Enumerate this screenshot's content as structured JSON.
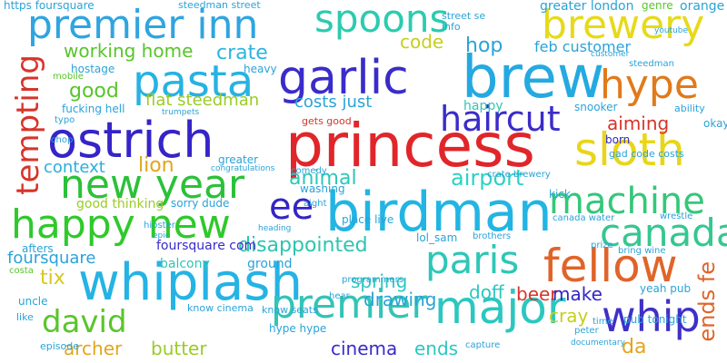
{
  "words": [
    {
      "text": "princess",
      "color": "#e0262a",
      "vertical": false
    },
    {
      "text": "birdman",
      "color": "#22b5e3",
      "vertical": false
    },
    {
      "text": "whiplash",
      "color": "#25b3e4",
      "vertical": false
    },
    {
      "text": "brew",
      "color": "#24a9e1",
      "vertical": false
    },
    {
      "text": "ostrich",
      "color": "#3524c8",
      "vertical": false
    },
    {
      "text": "garlic",
      "color": "#3a2cc9",
      "vertical": false
    },
    {
      "text": "premier inn",
      "color": "#2fa5e0",
      "vertical": false
    },
    {
      "text": "pasta",
      "color": "#26b3e2",
      "vertical": false
    },
    {
      "text": "happy new",
      "color": "#2fc92b",
      "vertical": false
    },
    {
      "text": "new year",
      "color": "#2bc13a",
      "vertical": false
    },
    {
      "text": "sloth",
      "color": "#e8d619",
      "vertical": false
    },
    {
      "text": "brewery",
      "color": "#e6da1a",
      "vertical": false
    },
    {
      "text": "hype",
      "color": "#e07a1a",
      "vertical": false
    },
    {
      "text": "major",
      "color": "#2bc7c0",
      "vertical": false
    },
    {
      "text": "premier",
      "color": "#33c4b5",
      "vertical": false
    },
    {
      "text": "fellow",
      "color": "#e0642a",
      "vertical": false
    },
    {
      "text": "paris",
      "color": "#2dc7b6",
      "vertical": false
    },
    {
      "text": "canada",
      "color": "#35c790",
      "vertical": false
    },
    {
      "text": "machine",
      "color": "#35c77a",
      "vertical": false
    },
    {
      "text": "spoons",
      "color": "#2ccbb0",
      "vertical": false
    },
    {
      "text": "haircut",
      "color": "#3a2cc9",
      "vertical": false
    },
    {
      "text": "whip",
      "color": "#3f30c8",
      "vertical": false
    },
    {
      "text": "david",
      "color": "#58c52b",
      "vertical": false
    },
    {
      "text": "ee",
      "color": "#3425c4",
      "vertical": false
    },
    {
      "text": "tempting",
      "color": "#d8342a",
      "vertical": true
    },
    {
      "text": "ends fe",
      "color": "#e0642a",
      "vertical": true
    },
    {
      "text": "context",
      "color": "#2caedd",
      "vertical": false
    },
    {
      "text": "lion",
      "color": "#e3a51c",
      "vertical": false
    },
    {
      "text": "animal",
      "color": "#2dc7b6",
      "vertical": false
    },
    {
      "text": "airport",
      "color": "#2bd2c3",
      "vertical": false
    },
    {
      "text": "disappointed",
      "color": "#2ec5b0",
      "vertical": false
    },
    {
      "text": "working home",
      "color": "#58c52b",
      "vertical": false
    },
    {
      "text": "crate",
      "color": "#2bb5e0",
      "vertical": false
    },
    {
      "text": "hop",
      "color": "#2aa3d8",
      "vertical": false
    },
    {
      "text": "code",
      "color": "#c5cf1c",
      "vertical": false
    },
    {
      "text": "aiming",
      "color": "#d8342a",
      "vertical": false
    },
    {
      "text": "good",
      "color": "#58c52b",
      "vertical": false
    },
    {
      "text": "flat steedman",
      "color": "#9acb28",
      "vertical": false
    },
    {
      "text": "costs just",
      "color": "#2aa3d8",
      "vertical": false
    },
    {
      "text": "feb customer",
      "color": "#2aa3d8",
      "vertical": false
    },
    {
      "text": "foursquare",
      "color": "#2aa3d8",
      "vertical": false
    },
    {
      "text": "tix",
      "color": "#d6c820",
      "vertical": false
    },
    {
      "text": "spring",
      "color": "#2bc7c0",
      "vertical": false
    },
    {
      "text": "drawing",
      "color": "#2aa3d8",
      "vertical": false
    },
    {
      "text": "beer",
      "color": "#d8342a",
      "vertical": false
    },
    {
      "text": "make",
      "color": "#3425c4",
      "vertical": false
    },
    {
      "text": "doff",
      "color": "#2bc7c0",
      "vertical": false
    },
    {
      "text": "archer",
      "color": "#e3a51c",
      "vertical": false
    },
    {
      "text": "butter",
      "color": "#9acb28",
      "vertical": false
    },
    {
      "text": "cinema",
      "color": "#3a2cc9",
      "vertical": false
    },
    {
      "text": "ends",
      "color": "#2bc7c0",
      "vertical": false
    },
    {
      "text": "cray",
      "color": "#c5cf1c",
      "vertical": false
    },
    {
      "text": "da",
      "color": "#e3a51c",
      "vertical": false
    },
    {
      "text": "happy",
      "color": "#33c4b5",
      "vertical": false
    },
    {
      "text": "greater london",
      "color": "#2aa3d8",
      "vertical": false
    },
    {
      "text": "orange",
      "color": "#2aa3d8",
      "vertical": false
    },
    {
      "text": "genre",
      "color": "#58c52b",
      "vertical": false
    },
    {
      "text": "https foursquare",
      "color": "#2aa3d8",
      "vertical": false
    },
    {
      "text": "steedman street",
      "color": "#2aa3d8",
      "vertical": false
    },
    {
      "text": "good thinking",
      "color": "#9acb28",
      "vertical": false
    },
    {
      "text": "sorry dude",
      "color": "#2aa3d8",
      "vertical": false
    },
    {
      "text": "foursquare com",
      "color": "#3a2cc9",
      "vertical": false
    },
    {
      "text": "balcony",
      "color": "#33c4b5",
      "vertical": false
    },
    {
      "text": "ground",
      "color": "#2aa3d8",
      "vertical": false
    },
    {
      "text": "lol_sam",
      "color": "#2aa3d8",
      "vertical": false
    },
    {
      "text": "place live",
      "color": "#2aa3d8",
      "vertical": false
    },
    {
      "text": "programmers",
      "color": "#2aa3d8",
      "vertical": false
    },
    {
      "text": "pub tonight",
      "color": "#2aa3d8",
      "vertical": false
    },
    {
      "text": "hype hype",
      "color": "#2aa3d8",
      "vertical": false
    },
    {
      "text": "know cinema",
      "color": "#2aa3d8",
      "vertical": false
    },
    {
      "text": "know seats",
      "color": "#2aa3d8",
      "vertical": false
    },
    {
      "text": "episode",
      "color": "#2aa3d8",
      "vertical": false
    },
    {
      "text": "uncle",
      "color": "#2aa3d8",
      "vertical": false
    },
    {
      "text": "afters",
      "color": "#2aa3d8",
      "vertical": false
    },
    {
      "text": "costa",
      "color": "#58c52b",
      "vertical": false
    },
    {
      "text": "hostage",
      "color": "#2aa3d8",
      "vertical": false
    },
    {
      "text": "mobile",
      "color": "#58c52b",
      "vertical": false
    },
    {
      "text": "snooker",
      "color": "#2aa3d8",
      "vertical": false
    },
    {
      "text": "born",
      "color": "#3425c4",
      "vertical": false
    },
    {
      "text": "gad code costs",
      "color": "#2aa3d8",
      "vertical": false
    },
    {
      "text": "crate brewery",
      "color": "#2aa3d8",
      "vertical": false
    },
    {
      "text": "canada water",
      "color": "#2aa3d8",
      "vertical": false
    },
    {
      "text": "yeah pub",
      "color": "#2aa3d8",
      "vertical": false
    },
    {
      "text": "bring wine",
      "color": "#2aa3d8",
      "vertical": false
    },
    {
      "text": "gets good",
      "color": "#d8342a",
      "vertical": false
    },
    {
      "text": "washing",
      "color": "#2aa3d8",
      "vertical": false
    },
    {
      "text": "fucking hell",
      "color": "#2aa3d8",
      "vertical": false
    },
    {
      "text": "kick",
      "color": "#2aa3d8",
      "vertical": false
    },
    {
      "text": "okay",
      "color": "#2aa3d8",
      "vertical": false
    },
    {
      "text": "ability",
      "color": "#2aa3d8",
      "vertical": false
    },
    {
      "text": "street se",
      "color": "#2aa3d8",
      "vertical": false
    },
    {
      "text": "info",
      "color": "#2aa3d8",
      "vertical": false
    },
    {
      "text": "greater",
      "color": "#2aa3d8",
      "vertical": false
    },
    {
      "text": "comedy",
      "color": "#2aa3d8",
      "vertical": false
    },
    {
      "text": "aight",
      "color": "#2aa3d8",
      "vertical": false
    },
    {
      "text": "heavy",
      "color": "#2aa3d8",
      "vertical": false
    },
    {
      "text": "typo",
      "color": "#2aa3d8",
      "vertical": false
    },
    {
      "text": "chop",
      "color": "#2aa3d8",
      "vertical": false
    },
    {
      "text": "like",
      "color": "#2aa3d8",
      "vertical": false
    },
    {
      "text": "prize",
      "color": "#2aa3d8",
      "vertical": false
    },
    {
      "text": "time",
      "color": "#2aa3d8",
      "vertical": false
    },
    {
      "text": "peter",
      "color": "#2aa3d8",
      "vertical": false
    },
    {
      "text": "capture",
      "color": "#2aa3d8",
      "vertical": false
    },
    {
      "text": "hear",
      "color": "#2aa3d8",
      "vertical": false
    },
    {
      "text": "brothers",
      "color": "#2aa3d8",
      "vertical": false
    },
    {
      "text": "wrestle",
      "color": "#2aa3d8",
      "vertical": false
    },
    {
      "text": "heading",
      "color": "#2aa3d8",
      "vertical": false
    },
    {
      "text": "trumpets",
      "color": "#2aa3d8",
      "vertical": false
    },
    {
      "text": "congratulations",
      "color": "#2aa3d8",
      "vertical": false
    },
    {
      "text": "hipster",
      "color": "#2aa3d8",
      "vertical": false
    },
    {
      "text": "epic",
      "color": "#2aa3d8",
      "vertical": false
    },
    {
      "text": "documentary",
      "color": "#2aa3d8",
      "vertical": false
    },
    {
      "text": "youtube",
      "color": "#2aa3d8",
      "vertical": false
    },
    {
      "text": "steedman",
      "color": "#2aa3d8",
      "vertical": false
    },
    {
      "text": "customer",
      "color": "#2aa3d8",
      "vertical": false
    }
  ]
}
